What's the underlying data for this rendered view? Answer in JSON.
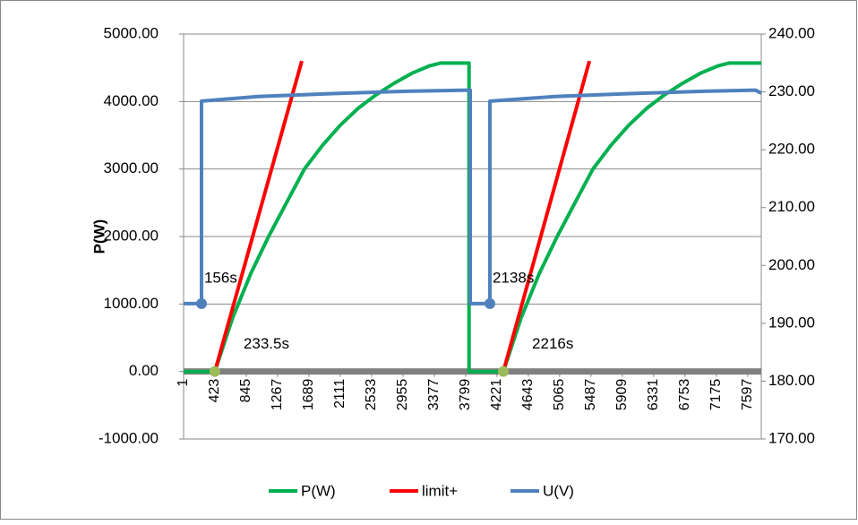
{
  "chart_data": {
    "type": "line",
    "ylabel": "P(W)",
    "xlim": [
      1,
      7780
    ],
    "xticks": [
      1,
      423,
      845,
      1267,
      1689,
      2111,
      2533,
      2955,
      3377,
      3799,
      4221,
      4643,
      5065,
      5487,
      5909,
      6331,
      6753,
      7175,
      7597
    ],
    "ylim": [
      -1000,
      5000
    ],
    "yticks": [
      {
        "value": -1000,
        "label": "-1000.00"
      },
      {
        "value": 0,
        "label": "0.00"
      },
      {
        "value": 1000,
        "label": "1000.00"
      },
      {
        "value": 2000,
        "label": "2000.00"
      },
      {
        "value": 3000,
        "label": "3000.00"
      },
      {
        "value": 4000,
        "label": "4000.00"
      },
      {
        "value": 5000,
        "label": "5000.00"
      }
    ],
    "y2lim": [
      170,
      240
    ],
    "y2ticks": [
      {
        "value": 170,
        "label": "170.00"
      },
      {
        "value": 180,
        "label": "180.00"
      },
      {
        "value": 190,
        "label": "190.00"
      },
      {
        "value": 200,
        "label": "200.00"
      },
      {
        "value": 210,
        "label": "210.00"
      },
      {
        "value": 220,
        "label": "220.00"
      },
      {
        "value": 230,
        "label": "230.00"
      },
      {
        "value": 240,
        "label": "240.00"
      }
    ],
    "grid": true,
    "legend": "bottom",
    "series": [
      {
        "name": "P(W)",
        "color": "#00b050",
        "x": [
          1,
          422,
          663,
          905,
          1146,
          1387,
          1628,
          1870,
          2111,
          2352,
          2593,
          2835,
          3076,
          3317,
          3460,
          3845,
          3845,
          4307,
          4548,
          4790,
          5031,
          5272,
          5513,
          5755,
          5996,
          6237,
          6478,
          6720,
          6961,
          7202,
          7345,
          7780
        ],
        "values": [
          0,
          0,
          800,
          1450,
          2000,
          2500,
          3000,
          3350,
          3650,
          3900,
          4100,
          4270,
          4420,
          4530,
          4570,
          4570,
          0,
          0,
          800,
          1450,
          2000,
          2500,
          3000,
          3350,
          3650,
          3900,
          4100,
          4270,
          4420,
          4530,
          4570,
          4570
        ]
      },
      {
        "name": "limit+",
        "color": "#ff0000",
        "x": [
          422,
          1593,
          null,
          4307,
          5465
        ],
        "values": [
          0,
          4600,
          null,
          0,
          4600
        ]
      },
      {
        "name": "U(V)",
        "color": "#4f81bd",
        "axis": "y2",
        "x": [
          1,
          242,
          242,
          1000,
          2000,
          3000,
          3860,
          3860,
          4126,
          4126,
          5000,
          6000,
          7000,
          7700,
          7780
        ],
        "values": [
          193.4,
          193.4,
          228.4,
          229.2,
          229.7,
          230.1,
          230.3,
          193.4,
          193.4,
          228.4,
          229.2,
          229.7,
          230.1,
          230.3,
          229.8
        ]
      }
    ],
    "annotations": [
      {
        "text": "156s",
        "x": 242,
        "y": 193.4,
        "axis": "y2",
        "color": "#4f81bd"
      },
      {
        "text": "233.5s",
        "x": 422,
        "y": 0,
        "color": "#9bbb59"
      },
      {
        "text": "2138s",
        "x": 4126,
        "y": 193.4,
        "axis": "y2",
        "color": "#4f81bd"
      },
      {
        "text": "2216s",
        "x": 4307,
        "y": 0,
        "color": "#9bbb59"
      }
    ]
  }
}
